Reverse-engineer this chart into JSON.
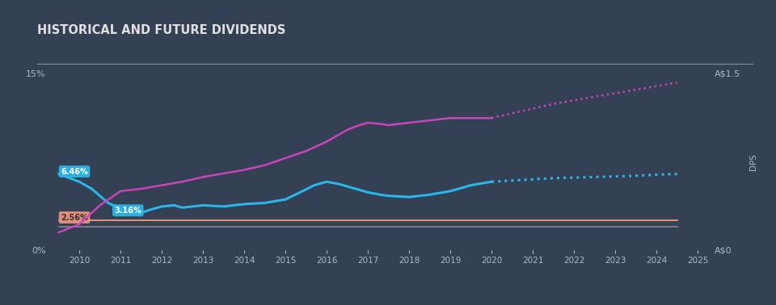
{
  "title": "HISTORICAL AND FUTURE DIVIDENDS",
  "background_color": "#344054",
  "plot_bg_color": "#344054",
  "title_color": "#e0e0e0",
  "axis_label_color": "#b0b8c8",
  "tick_color": "#b0b8c8",
  "years": [
    2009.5,
    2010.0,
    2010.3,
    2010.5,
    2010.7,
    2011.0,
    2011.3,
    2011.5,
    2011.7,
    2012.0,
    2012.3,
    2012.5,
    2013.0,
    2013.5,
    2014.0,
    2014.5,
    2015.0,
    2015.3,
    2015.7,
    2016.0,
    2016.3,
    2016.5,
    2016.8,
    2017.0,
    2017.3,
    2017.5,
    2018.0,
    2018.5,
    2019.0,
    2019.5,
    2020.0
  ],
  "mms_yield": [
    6.46,
    5.8,
    5.2,
    4.6,
    4.0,
    3.5,
    3.1,
    3.16,
    3.4,
    3.7,
    3.8,
    3.6,
    3.8,
    3.7,
    3.9,
    4.0,
    4.3,
    4.8,
    5.5,
    5.8,
    5.6,
    5.4,
    5.1,
    4.9,
    4.7,
    4.6,
    4.5,
    4.7,
    5.0,
    5.5,
    5.8
  ],
  "mms_yield_forecast_years": [
    2020.0,
    2020.5,
    2021.0,
    2021.5,
    2022.0,
    2022.5,
    2023.0,
    2023.5,
    2024.0,
    2024.5
  ],
  "mms_yield_forecast_vals": [
    5.8,
    5.9,
    6.0,
    6.1,
    6.15,
    6.2,
    6.25,
    6.3,
    6.4,
    6.45
  ],
  "dps_years": [
    2009.5,
    2010.0,
    2010.5,
    2011.0,
    2011.5,
    2012.0,
    2012.5,
    2013.0,
    2013.5,
    2014.0,
    2014.5,
    2015.0,
    2015.5,
    2016.0,
    2016.3,
    2016.5,
    2016.8,
    2017.0,
    2017.3,
    2017.5,
    2018.0,
    2018.5,
    2019.0,
    2019.5,
    2020.0
  ],
  "mms_dps": [
    0.15,
    0.22,
    0.38,
    0.5,
    0.52,
    0.55,
    0.58,
    0.62,
    0.65,
    0.68,
    0.72,
    0.78,
    0.84,
    0.92,
    0.98,
    1.02,
    1.06,
    1.08,
    1.07,
    1.06,
    1.08,
    1.1,
    1.12,
    1.12,
    1.12
  ],
  "dps_forecast_years": [
    2020.0,
    2020.5,
    2021.0,
    2021.5,
    2022.0,
    2022.5,
    2023.0,
    2023.5,
    2024.0,
    2024.5
  ],
  "dps_forecast_vals": [
    1.12,
    1.16,
    1.2,
    1.24,
    1.27,
    1.3,
    1.33,
    1.36,
    1.39,
    1.42
  ],
  "prof_services_years": [
    2009.5,
    2024.5
  ],
  "prof_services_vals": [
    2.56,
    2.56
  ],
  "market_years": [
    2009.5,
    2024.5
  ],
  "market_vals": [
    2.0,
    2.0
  ],
  "mms_yield_color": "#29b6e8",
  "mms_dps_color": "#cc44bb",
  "prof_services_color": "#e8927c",
  "market_color": "#888899",
  "label_6_46": "6.46%",
  "label_3_16": "3.16%",
  "label_2_56": "2.56%",
  "ylim_left": [
    0,
    15.0
  ],
  "ylim_right": [
    0,
    1.5
  ],
  "xlim": [
    2009.3,
    2025.3
  ],
  "left_yticks": [
    0,
    15
  ],
  "left_yticklabels": [
    "0%",
    "15%"
  ],
  "right_yticks": [
    0,
    1.5
  ],
  "right_yticklabels": [
    "A$0",
    "A$1.5"
  ],
  "xticks": [
    2010,
    2011,
    2012,
    2013,
    2014,
    2015,
    2016,
    2017,
    2018,
    2019,
    2020,
    2021,
    2022,
    2023,
    2024,
    2025
  ]
}
